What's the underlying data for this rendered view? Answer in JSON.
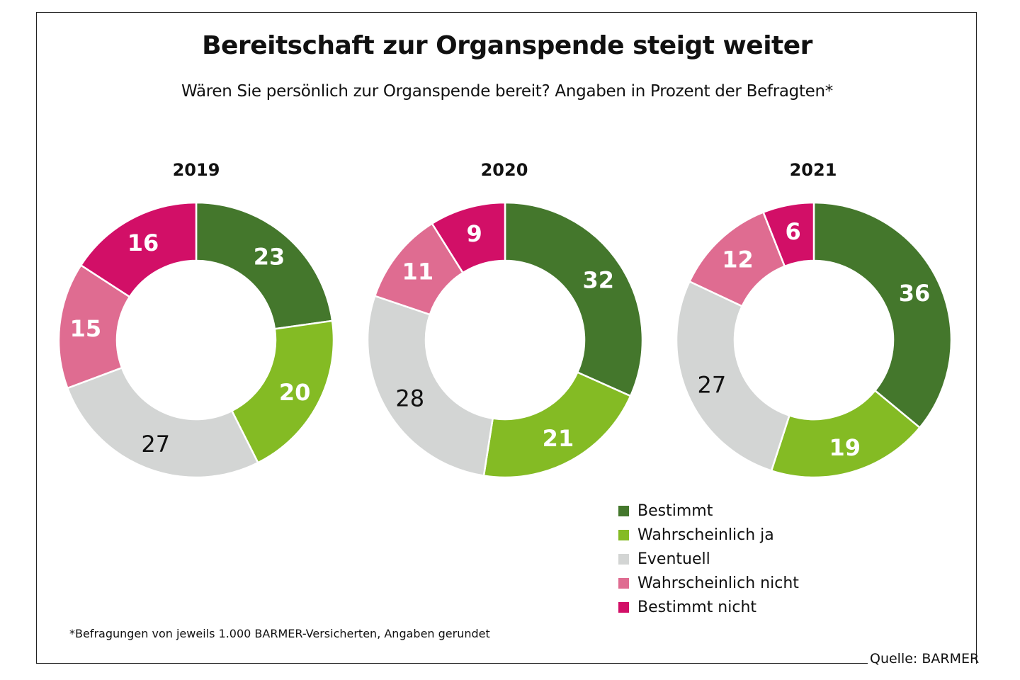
{
  "title": "Bereitschaft zur Organspende steigt weiter",
  "subtitle": "Wären Sie persönlich zur Organspende bereit? Angaben in Prozent der Befragten*",
  "footnote": "*Befragungen von jeweils 1.000 BARMER-Versicherten, Angaben gerundet",
  "source": "Quelle: BARMER",
  "chart_data": {
    "type": "pie",
    "subtype": "donut",
    "title": "Bereitschaft zur Organspende steigt weiter",
    "subtitle": "Wären Sie persönlich zur Organspende bereit? Angaben in Prozent der Befragten*",
    "unit": "%",
    "categories": [
      "Bestimmt",
      "Wahrscheinlich ja",
      "Eventuell",
      "Wahrscheinlich nicht",
      "Bestimmt nicht"
    ],
    "colors": [
      "#44772c",
      "#84bb24",
      "#d3d5d4",
      "#df6c91",
      "#d20f67"
    ],
    "label_colors": [
      "#ffffff",
      "#ffffff",
      "#111111",
      "#ffffff",
      "#ffffff"
    ],
    "legend_position": "bottom-right",
    "series": [
      {
        "name": "2019",
        "values": [
          23,
          20,
          27,
          15,
          16
        ]
      },
      {
        "name": "2020",
        "values": [
          32,
          21,
          28,
          11,
          9
        ]
      },
      {
        "name": "2021",
        "values": [
          36,
          19,
          27,
          12,
          6
        ]
      }
    ]
  }
}
